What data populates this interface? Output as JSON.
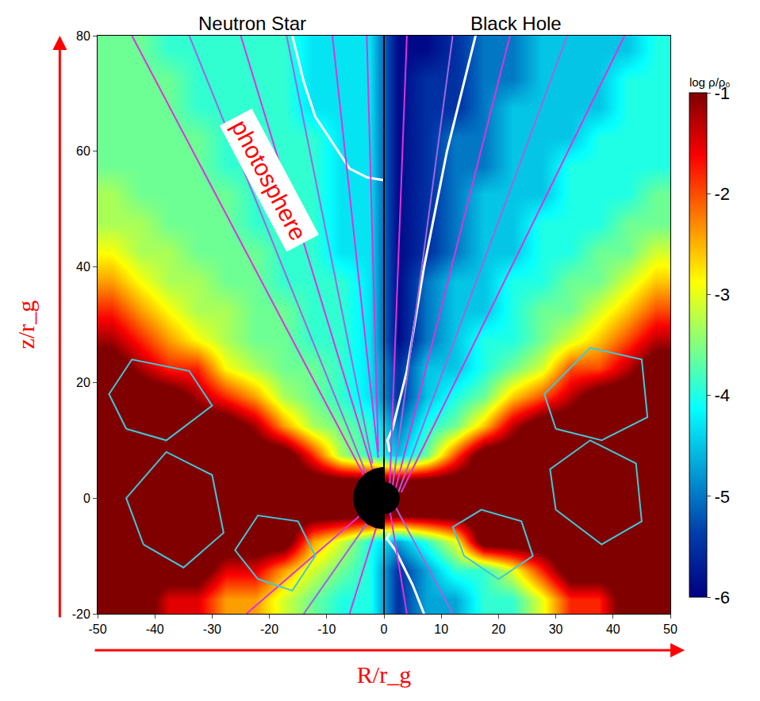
{
  "chart_data": {
    "type": "heatmap",
    "x_label": "R/r_g",
    "y_label": "z/r_g",
    "xlim": [
      -50,
      50
    ],
    "xticks": [
      -50,
      -40,
      -30,
      -20,
      -10,
      0,
      10,
      20,
      30,
      40,
      50
    ],
    "ylim": [
      -20,
      80
    ],
    "yticks": [
      -20,
      0,
      20,
      40,
      60,
      80
    ],
    "grid": false,
    "x": [
      -47.5,
      -42.5,
      -37.5,
      -32.5,
      -27.5,
      -22.5,
      -17.5,
      -12.5,
      -7.5,
      -2.5,
      2.5,
      7.5,
      12.5,
      17.5,
      22.5,
      27.5,
      32.5,
      37.5,
      42.5,
      47.5
    ],
    "y": [
      -17.5,
      -12.5,
      -7.5,
      -2.5,
      2.5,
      7.5,
      12.5,
      17.5,
      22.5,
      27.5,
      32.5,
      37.5,
      42.5,
      47.5,
      52.5,
      57.5,
      62.5,
      67.5,
      72.5,
      77.5
    ],
    "cells": [
      [
        -0.5,
        -0.5,
        -1.5,
        -1.5,
        -2.4,
        -2.4,
        -3.1,
        -3.6,
        -4.0,
        -4.0,
        -5.5,
        -4.7,
        -4.7,
        -3.9,
        -3.9,
        -3.0,
        -1.8,
        -1.8,
        -0.5,
        -0.5
      ],
      [
        -0.5,
        -0.5,
        -0.5,
        -0.5,
        -1.5,
        -1.5,
        -2.4,
        -3.1,
        -3.6,
        -4.0,
        -5.5,
        -4.7,
        -3.9,
        -3.9,
        -3.0,
        -1.8,
        -0.5,
        -0.5,
        -0.5,
        -0.5
      ],
      [
        -0.5,
        -0.5,
        -0.5,
        -0.5,
        -0.5,
        -0.5,
        -0.5,
        -2.4,
        -3.1,
        -4.0,
        -4.7,
        -3.9,
        -3.0,
        -0.5,
        -0.5,
        -0.5,
        -0.5,
        -0.5,
        -0.5,
        -0.5
      ],
      [
        -0.5,
        -0.5,
        -0.5,
        -0.5,
        -0.5,
        -0.5,
        -0.5,
        -0.5,
        -0.5,
        -0.5,
        -0.5,
        -0.5,
        -0.5,
        -0.5,
        -0.5,
        -0.5,
        -0.5,
        -0.5,
        -0.5,
        -0.5
      ],
      [
        -0.5,
        -0.5,
        -0.5,
        -0.5,
        -0.5,
        -0.5,
        -0.5,
        -0.5,
        -0.5,
        -0.5,
        -0.5,
        -0.5,
        -0.5,
        -0.5,
        -0.5,
        -0.5,
        -0.5,
        -0.5,
        -0.5,
        -0.5
      ],
      [
        -0.5,
        -0.5,
        -0.5,
        -0.5,
        -0.5,
        -0.5,
        -0.5,
        -1.8,
        -3.3,
        -3.9,
        -4.5,
        -3.6,
        -2.0,
        -0.5,
        -0.5,
        -0.5,
        -0.5,
        -0.5,
        -0.5,
        -0.5
      ],
      [
        -0.5,
        -0.5,
        -0.5,
        -0.5,
        -0.5,
        -1.2,
        -2.4,
        -3.3,
        -3.6,
        -3.9,
        -5.0,
        -4.0,
        -3.6,
        -2.6,
        -1.3,
        -0.5,
        -0.5,
        -0.5,
        -0.5,
        -0.5
      ],
      [
        -0.5,
        -0.5,
        -0.5,
        -1.2,
        -1.8,
        -2.4,
        -3.3,
        -3.6,
        -3.9,
        -4.3,
        -5.5,
        -4.5,
        -4.0,
        -3.6,
        -2.6,
        -2.0,
        -1.3,
        -0.5,
        -0.5,
        -0.5
      ],
      [
        -0.5,
        -1.2,
        -1.8,
        -1.8,
        -2.9,
        -3.3,
        -3.6,
        -3.6,
        -3.9,
        -4.3,
        -5.5,
        -4.5,
        -4.5,
        -4.0,
        -3.6,
        -3.1,
        -2.0,
        -2.0,
        -1.3,
        -0.5
      ],
      [
        -1.2,
        -1.8,
        -2.4,
        -2.9,
        -3.3,
        -3.6,
        -3.6,
        -3.9,
        -3.9,
        -4.3,
        -5.9,
        -5.0,
        -4.5,
        -4.0,
        -4.0,
        -3.6,
        -3.1,
        -2.6,
        -2.0,
        -1.3
      ],
      [
        -1.8,
        -2.4,
        -2.9,
        -3.3,
        -3.3,
        -3.6,
        -3.6,
        -3.9,
        -3.9,
        -4.3,
        -5.9,
        -5.0,
        -4.5,
        -4.5,
        -4.0,
        -3.6,
        -3.6,
        -3.1,
        -2.6,
        -2.0
      ],
      [
        -2.4,
        -2.9,
        -3.3,
        -3.3,
        -3.6,
        -3.6,
        -3.9,
        -3.9,
        -3.9,
        -4.3,
        -5.9,
        -5.0,
        -4.5,
        -4.5,
        -4.0,
        -4.0,
        -3.6,
        -3.6,
        -3.1,
        -2.6
      ],
      [
        -2.9,
        -3.3,
        -3.3,
        -3.6,
        -3.6,
        -3.6,
        -3.9,
        -3.9,
        -4.3,
        -4.3,
        -5.9,
        -5.5,
        -5.0,
        -4.5,
        -4.5,
        -4.0,
        -4.0,
        -3.6,
        -3.6,
        -3.1
      ],
      [
        -3.3,
        -3.3,
        -3.6,
        -3.6,
        -3.6,
        -3.9,
        -3.9,
        -3.9,
        -4.3,
        -4.3,
        -5.9,
        -5.5,
        -5.0,
        -4.5,
        -4.5,
        -4.0,
        -4.0,
        -4.0,
        -3.6,
        -3.6
      ],
      [
        -3.3,
        -3.6,
        -3.6,
        -3.6,
        -3.6,
        -3.9,
        -3.9,
        -3.9,
        -4.3,
        -4.3,
        -5.9,
        -5.5,
        -5.0,
        -4.5,
        -4.5,
        -4.5,
        -4.0,
        -4.0,
        -4.0,
        -3.6
      ],
      [
        -3.6,
        -3.6,
        -3.6,
        -3.6,
        -3.9,
        -3.9,
        -3.9,
        -3.9,
        -4.3,
        -4.3,
        -5.9,
        -5.5,
        -5.0,
        -5.0,
        -4.5,
        -4.5,
        -4.0,
        -4.0,
        -4.0,
        -4.0
      ],
      [
        -3.6,
        -3.6,
        -3.6,
        -3.6,
        -3.9,
        -3.9,
        -3.9,
        -3.9,
        -4.3,
        -4.3,
        -5.9,
        -5.5,
        -5.0,
        -5.0,
        -4.5,
        -4.5,
        -4.5,
        -4.0,
        -4.0,
        -4.0
      ],
      [
        -3.6,
        -3.6,
        -3.6,
        -3.9,
        -3.9,
        -3.9,
        -3.9,
        -4.3,
        -4.3,
        -4.3,
        -5.9,
        -5.5,
        -5.5,
        -5.0,
        -4.5,
        -4.5,
        -4.5,
        -4.5,
        -4.0,
        -4.0
      ],
      [
        -3.6,
        -3.6,
        -3.6,
        -3.9,
        -3.9,
        -3.9,
        -3.9,
        -4.3,
        -4.3,
        -4.3,
        -5.9,
        -5.5,
        -5.5,
        -5.0,
        -5.0,
        -4.5,
        -4.5,
        -4.5,
        -4.0,
        -4.0
      ],
      [
        -3.6,
        -3.6,
        -3.9,
        -3.9,
        -3.9,
        -3.9,
        -3.9,
        -4.3,
        -4.3,
        -4.3,
        -5.9,
        -5.9,
        -5.5,
        -5.0,
        -5.0,
        -4.5,
        -4.5,
        -4.5,
        -4.5,
        -4.0
      ]
    ],
    "colorbar_title": "log ρ/ρ₀",
    "colorbar_range": [
      -6,
      -1
    ],
    "colorbar_ticks": [
      -1,
      -2,
      -3,
      -4,
      -5,
      -6
    ],
    "objects": [
      {
        "label": "Neutron Star",
        "radius": 5.3,
        "side": "left"
      },
      {
        "label": "Black Hole",
        "radius": 2.7,
        "side": "right"
      }
    ],
    "annotations": [
      {
        "text": "photosphere",
        "x": -20,
        "y": 55
      }
    ],
    "series": [
      {
        "type": "line",
        "color": "#ffffff",
        "line_style": "solid",
        "x": [
          0,
          -3,
          -6,
          -8,
          -10,
          -12,
          -14,
          -16
        ],
        "values": [
          55,
          55.5,
          57,
          60,
          63,
          66,
          72,
          80
        ]
      },
      {
        "type": "line",
        "color": "#ffffff",
        "line_style": "solid",
        "x": [
          1,
          0.6,
          1.5,
          4,
          7,
          11,
          16
        ],
        "values": [
          8,
          10,
          12,
          22,
          40,
          60,
          80
        ]
      },
      {
        "type": "line",
        "color": "#ffffff",
        "line_style": "solid",
        "x": [
          1,
          0.5,
          2,
          5,
          7
        ],
        "values": [
          -6,
          -7,
          -9,
          -15,
          -20
        ]
      },
      {
        "type": "line",
        "color": "#dd33dd",
        "line_style": "solid",
        "x": [
          -3,
          -44
        ],
        "values": [
          3,
          80
        ]
      },
      {
        "type": "line",
        "color": "#a066e0",
        "line_style": "solid",
        "x": [
          -3,
          -34
        ],
        "values": [
          4,
          80
        ]
      },
      {
        "type": "line",
        "color": "#dd33dd",
        "line_style": "solid",
        "x": [
          -2,
          -25
        ],
        "values": [
          5,
          80
        ]
      },
      {
        "type": "line",
        "color": "#a066e0",
        "line_style": "solid",
        "x": [
          -2,
          -17
        ],
        "values": [
          6,
          80
        ]
      },
      {
        "type": "line",
        "color": "#dd33dd",
        "line_style": "solid",
        "x": [
          -1,
          -9
        ],
        "values": [
          7,
          80
        ]
      },
      {
        "type": "line",
        "color": "#dd33dd",
        "line_style": "solid",
        "x": [
          -1,
          -3
        ],
        "values": [
          8,
          80
        ]
      },
      {
        "type": "line",
        "color": "#dd33dd",
        "line_style": "solid",
        "x": [
          -3,
          -24
        ],
        "values": [
          -2,
          -20
        ]
      },
      {
        "type": "line",
        "color": "#a066e0",
        "line_style": "solid",
        "x": [
          -2,
          -14
        ],
        "values": [
          -3,
          -20
        ]
      },
      {
        "type": "line",
        "color": "#dd33dd",
        "line_style": "solid",
        "x": [
          -1,
          -6
        ],
        "values": [
          -4,
          -20
        ]
      },
      {
        "type": "line",
        "color": "#dd33dd",
        "line_style": "solid",
        "x": [
          1,
          4
        ],
        "values": [
          2,
          80
        ]
      },
      {
        "type": "line",
        "color": "#a066e0",
        "line_style": "solid",
        "x": [
          1.5,
          12
        ],
        "values": [
          2,
          80
        ]
      },
      {
        "type": "line",
        "color": "#dd33dd",
        "line_style": "solid",
        "x": [
          2,
          22
        ],
        "values": [
          1.5,
          80
        ]
      },
      {
        "type": "line",
        "color": "#a066e0",
        "line_style": "solid",
        "x": [
          2.5,
          32
        ],
        "values": [
          1,
          80
        ]
      },
      {
        "type": "line",
        "color": "#dd33dd",
        "line_style": "solid",
        "x": [
          3,
          42
        ],
        "values": [
          1,
          80
        ]
      },
      {
        "type": "line",
        "color": "#dd33dd",
        "line_style": "solid",
        "x": [
          1,
          4
        ],
        "values": [
          -2,
          -20
        ]
      },
      {
        "type": "line",
        "color": "#a066e0",
        "line_style": "solid",
        "x": [
          2,
          12
        ],
        "values": [
          -1.5,
          -20
        ]
      },
      {
        "type": "line",
        "color": "#40c8d8",
        "line_style": "solid",
        "x": [
          -42,
          -35,
          -28,
          -30,
          -38,
          -45,
          -42
        ],
        "values": [
          -8,
          -12,
          -6,
          4,
          8,
          0,
          -8
        ]
      },
      {
        "type": "line",
        "color": "#40c8d8",
        "line_style": "solid",
        "x": [
          -22,
          -16,
          -12,
          -15,
          -22,
          -26,
          -22
        ],
        "values": [
          -14,
          -16,
          -10,
          -4,
          -3,
          -9,
          -14
        ]
      },
      {
        "type": "line",
        "color": "#40c8d8",
        "line_style": "solid",
        "x": [
          -45,
          -38,
          -30,
          -34,
          -44,
          -48,
          -45
        ],
        "values": [
          12,
          10,
          16,
          22,
          24,
          18,
          12
        ]
      },
      {
        "type": "line",
        "color": "#40c8d8",
        "line_style": "solid",
        "x": [
          30,
          38,
          45,
          44,
          36,
          29,
          30
        ],
        "values": [
          -2,
          -8,
          -4,
          6,
          10,
          5,
          -2
        ]
      },
      {
        "type": "line",
        "color": "#40c8d8",
        "line_style": "solid",
        "x": [
          14,
          20,
          26,
          24,
          17,
          12,
          14
        ],
        "values": [
          -10,
          -14,
          -10,
          -4,
          -2,
          -5,
          -10
        ]
      },
      {
        "type": "line",
        "color": "#40c8d8",
        "line_style": "solid",
        "x": [
          30,
          38,
          46,
          45,
          36,
          28,
          30
        ],
        "values": [
          12,
          10,
          14,
          24,
          26,
          18,
          12
        ]
      }
    ]
  }
}
